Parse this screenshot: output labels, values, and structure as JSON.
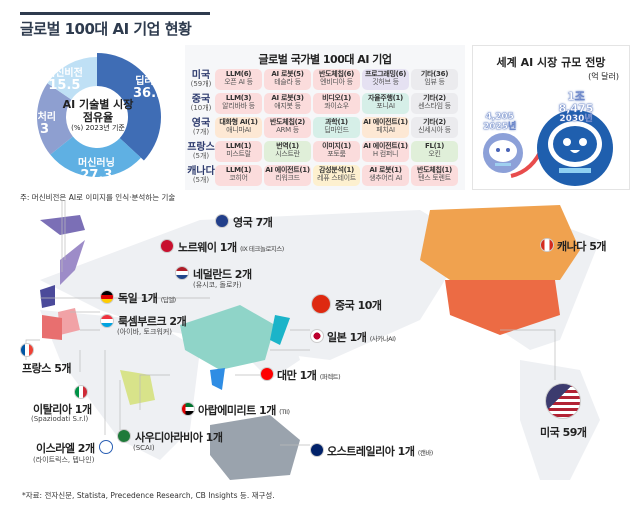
{
  "title": "글로벌 100대 AI 기업 현황",
  "chart_data": {
    "type": "pie",
    "title": "AI 기술별 시장 점유율",
    "subtitle": "(%) 2023년 기준",
    "categories": [
      "딥러닝",
      "머신러닝",
      "자연어처리",
      "머신비전"
    ],
    "values": [
      36.9,
      27.3,
      20.3,
      15.5
    ],
    "colors": [
      "#3f6db5",
      "#5fb0e3",
      "#8e9fd0",
      "#bfe0f5"
    ]
  },
  "note": "주: 머신비전은 AI로 이미지를 인식·분석하는 기술",
  "table": {
    "title": "글로벌 국가별 100대 AI 기업",
    "rows": [
      {
        "country": "미국",
        "count": "(59개)",
        "cells": [
          {
            "t": "LLM(6)",
            "s": "오픈 AI 등",
            "c": "#fbdcdc"
          },
          {
            "t": "AI 로봇(5)",
            "s": "테슬라 등",
            "c": "#fbdcdc"
          },
          {
            "t": "반도체칩(6)",
            "s": "엔비디아 등",
            "c": "#fbdcdc"
          },
          {
            "t": "프로그래밍(6)",
            "s": "깃허브 등",
            "c": "#e5e1f2"
          },
          {
            "t": "기타(36)",
            "s": "임뷰 등",
            "c": "#ebebee"
          }
        ]
      },
      {
        "country": "중국",
        "count": "(10개)",
        "cells": [
          {
            "t": "LLM(3)",
            "s": "알리바바 등",
            "c": "#fbdcdc"
          },
          {
            "t": "AI 로봇(3)",
            "s": "애지봇 등",
            "c": "#fbdcdc"
          },
          {
            "t": "비디오(1)",
            "s": "콰이쇼우",
            "c": "#fbdcdc"
          },
          {
            "t": "자율주행(1)",
            "s": "포니AI",
            "c": "#d6efe8"
          },
          {
            "t": "기타(2)",
            "s": "센스타임 등",
            "c": "#ebebee"
          }
        ]
      },
      {
        "country": "영국",
        "count": "(7개)",
        "cells": [
          {
            "t": "대화형 AI(1)",
            "s": "애니마AI",
            "c": "#fde8d4"
          },
          {
            "t": "반도체칩(2)",
            "s": "ARM 등",
            "c": "#fbdcdc"
          },
          {
            "t": "과학(1)",
            "s": "딥마인드",
            "c": "#d6efe8"
          },
          {
            "t": "AI 에이전트(1)",
            "s": "페치AI",
            "c": "#fde8d4"
          },
          {
            "t": "기타(2)",
            "s": "신세시아 등",
            "c": "#ebebee"
          }
        ]
      },
      {
        "country": "프랑스",
        "count": "(5개)",
        "cells": [
          {
            "t": "LLM(1)",
            "s": "미스트랄",
            "c": "#fbdcdc"
          },
          {
            "t": "번역(1)",
            "s": "시스트란",
            "c": "#e0efd9"
          },
          {
            "t": "이미지(1)",
            "s": "포토룸",
            "c": "#fbdcdc"
          },
          {
            "t": "AI 에이전트(1)",
            "s": "H 컴퍼니",
            "c": "#fbdcdc"
          },
          {
            "t": "FL(1)",
            "s": "오킨",
            "c": "#e0efd9"
          }
        ]
      },
      {
        "country": "캐나다",
        "count": "(5개)",
        "cells": [
          {
            "t": "LLM(1)",
            "s": "코히어",
            "c": "#fbdcdc"
          },
          {
            "t": "AI 에이전트(1)",
            "s": "리워크드",
            "c": "#fbdcdc"
          },
          {
            "t": "감성분석(1)",
            "s": "레퓨 스테이트",
            "c": "#fdf0cf"
          },
          {
            "t": "AI 로봇(1)",
            "s": "생추어리 AI",
            "c": "#fbdcdc"
          },
          {
            "t": "반도체칩(1)",
            "s": "텐스 토렌트",
            "c": "#fbdcdc"
          }
        ]
      }
    ]
  },
  "market": {
    "title": "세계 AI 시장 규모 전망",
    "unit": "(억 달러)",
    "y2025": "4,205",
    "label2025": "2025년",
    "y2030": "1조8,475",
    "label2030": "2030년"
  },
  "map": {
    "uk": {
      "name": "영국 7개"
    },
    "norway": {
      "name": "노르웨이 1개",
      "sub": "(IX 테크놀로지스)"
    },
    "netherlands": {
      "name": "네덜란드 2개",
      "sub": "(유시코, 돌로카)"
    },
    "germany": {
      "name": "독일 1개",
      "sub": "(딥엘)"
    },
    "luxembourg": {
      "name": "룩셈부르크 2개",
      "sub": "(아이바, 토크워커)"
    },
    "france": {
      "name": "프랑스 5개"
    },
    "italy": {
      "name": "이탈리아 1개",
      "sub": "(Spaziodati S.r.l)"
    },
    "israel": {
      "name": "이스라엘 2개",
      "sub": "(라이트릭스, 텝나인)"
    },
    "saudi": {
      "name": "사우디아라비아 1개",
      "sub": "(SCAI)"
    },
    "uae": {
      "name": "아랍에미리트 1개",
      "sub": "(TII)"
    },
    "china": {
      "name": "중국 10개"
    },
    "japan": {
      "name": "일본 1개",
      "sub": "(사카나AI)"
    },
    "taiwan": {
      "name": "대만 1개",
      "sub": "(퍼렉트)"
    },
    "australia": {
      "name": "오스트레일리아 1개",
      "sub": "(캔바)"
    },
    "canada": {
      "name": "캐나다 5개"
    },
    "usa": {
      "name": "미국 59개"
    }
  },
  "source": "*자료: 전자신문, Statista, Precedence Research, CB Insights 등. 재구성."
}
